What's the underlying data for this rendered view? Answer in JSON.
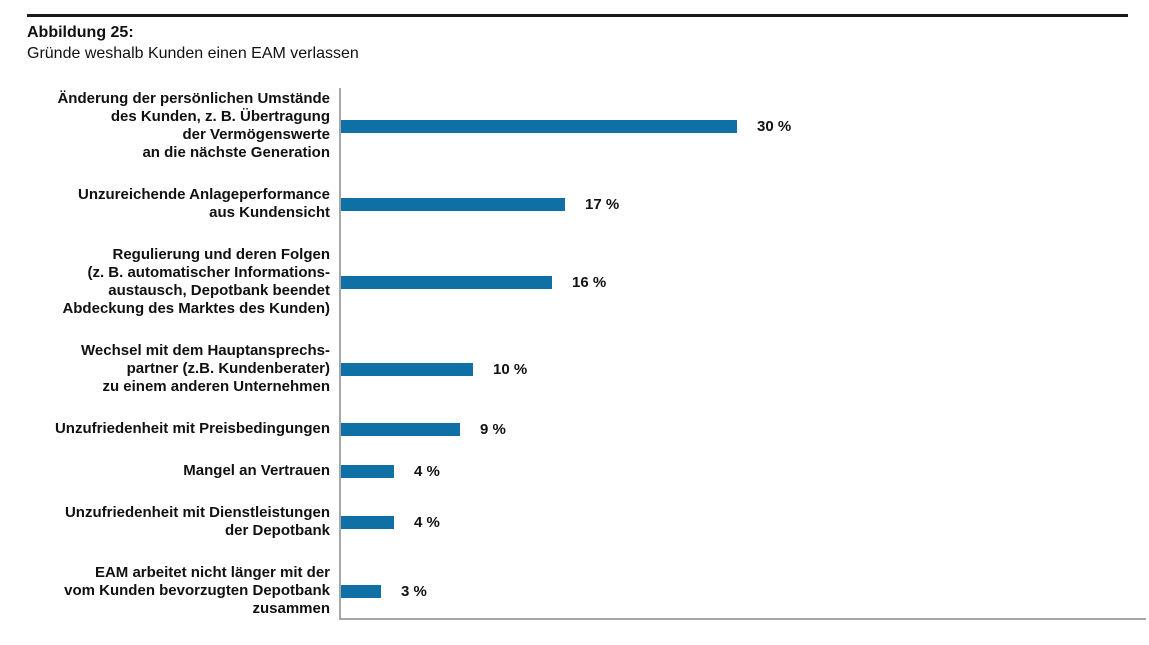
{
  "figure": {
    "label": "Abbildung 25:",
    "subtitle": "Gründe weshalb Kunden einen EAM verlassen"
  },
  "chart_data": {
    "type": "bar",
    "orientation": "horizontal",
    "title": "Gründe weshalb Kunden einen EAM verlassen",
    "xlabel": "",
    "ylabel": "",
    "unit": "%",
    "grid": false,
    "legend": false,
    "implied_axis_range_pct": [
      0,
      60
    ],
    "bar_color": "#0f70a6",
    "axis_color": "#a6a6a6",
    "categories": [
      "Änderung der persönlichen Umstände\ndes Kunden, z. B. Übertragung\nder Vermögenswerte\nan die nächste Generation",
      "Unzureichende Anlageperformance\naus Kundensicht",
      "Regulierung und deren Folgen\n(z. B. automatischer Informations-\naustausch, Depotbank beendet\nAbdeckung des Marktes des Kunden)",
      "Wechsel mit dem Hauptansprechs-\npartner (z.B. Kundenberater)\nzu einem anderen Unternehmen",
      "Unzufriedenheit mit Preisbedingungen",
      "Mangel an Vertrauen",
      "Unzufriedenheit mit Dienstleistungen\nder Depotbank",
      "EAM arbeitet nicht länger mit der\nvom Kunden bevorzugten Depotbank\nzusammen"
    ],
    "values": [
      30,
      17,
      16,
      10,
      9,
      4,
      4,
      3
    ],
    "value_labels": [
      "30 %",
      "17 %",
      "16 %",
      "10 %",
      "9 %",
      "4 %",
      "4 %",
      "3 %"
    ]
  }
}
